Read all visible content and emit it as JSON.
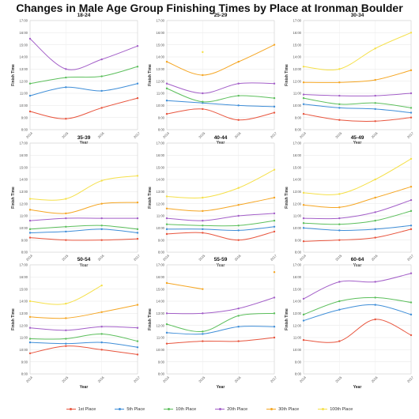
{
  "title": "Changes in Male Age Group Finishing Times by Place at Ironman Boulder",
  "legend": [
    {
      "name": "1st Place",
      "color": "#e8553e"
    },
    {
      "name": "5th Place",
      "color": "#3f8ed8"
    },
    {
      "name": "10th Place",
      "color": "#5cbf5c"
    },
    {
      "name": "20th Place",
      "color": "#a35fc8"
    },
    {
      "name": "30th Place",
      "color": "#f5a623"
    },
    {
      "name": "100th Place",
      "color": "#f5e04a"
    }
  ],
  "chart_data": [
    {
      "type": "line",
      "title": "18-24",
      "xlabel": "Year",
      "ylabel": "Finish Time",
      "x": [
        2014,
        2015,
        2016,
        2017
      ],
      "x_tick_labels": [
        "2014",
        "2015",
        "2016",
        "2017"
      ],
      "ylim": [
        8,
        17
      ],
      "y_tick_labels": [
        "8:00",
        "9:00",
        "10:00",
        "11:00",
        "12:00",
        "13:00",
        "14:00",
        "15:00",
        "16:00",
        "17:00"
      ],
      "series": [
        {
          "name": "1st Place",
          "values": [
            9.5,
            8.9,
            9.8,
            10.6
          ]
        },
        {
          "name": "5th Place",
          "values": [
            10.8,
            11.5,
            11.2,
            11.8
          ]
        },
        {
          "name": "10th Place",
          "values": [
            11.8,
            12.3,
            12.4,
            13.2
          ]
        },
        {
          "name": "20th Place",
          "values": [
            15.5,
            13.0,
            13.8,
            14.9
          ]
        }
      ]
    },
    {
      "type": "line",
      "title": "25-29",
      "xlabel": "Year",
      "ylabel": "Finish Time",
      "x": [
        2014,
        2015,
        2016,
        2017
      ],
      "x_tick_labels": [
        "2014",
        "2015",
        "2016",
        "2017"
      ],
      "ylim": [
        8,
        17
      ],
      "y_tick_labels": [
        "8:00",
        "9:00",
        "10:00",
        "11:00",
        "12:00",
        "13:00",
        "14:00",
        "15:00",
        "16:00",
        "17:00"
      ],
      "series": [
        {
          "name": "1st Place",
          "values": [
            9.3,
            9.7,
            8.8,
            9.4
          ]
        },
        {
          "name": "5th Place",
          "values": [
            10.4,
            10.2,
            10.0,
            9.9
          ]
        },
        {
          "name": "10th Place",
          "values": [
            11.4,
            10.3,
            10.8,
            10.6
          ]
        },
        {
          "name": "20th Place",
          "values": [
            11.8,
            11.0,
            11.8,
            11.8
          ]
        },
        {
          "name": "30th Place",
          "values": [
            13.6,
            12.5,
            13.6,
            15.0
          ]
        },
        {
          "name": "100th Place",
          "values": [
            null,
            14.4,
            null,
            null
          ]
        }
      ]
    },
    {
      "type": "line",
      "title": "30-34",
      "xlabel": "Year",
      "ylabel": "Finish Time",
      "x": [
        2014,
        2015,
        2016,
        2017
      ],
      "x_tick_labels": [
        "2014",
        "2015",
        "2016",
        "2017"
      ],
      "ylim": [
        8,
        17
      ],
      "y_tick_labels": [
        "8:00",
        "9:00",
        "10:00",
        "11:00",
        "12:00",
        "13:00",
        "14:00",
        "15:00",
        "16:00",
        "17:00"
      ],
      "series": [
        {
          "name": "1st Place",
          "values": [
            9.3,
            8.8,
            8.7,
            9.0
          ]
        },
        {
          "name": "5th Place",
          "values": [
            10.1,
            9.8,
            9.7,
            9.4
          ]
        },
        {
          "name": "10th Place",
          "values": [
            10.6,
            10.1,
            10.2,
            9.8
          ]
        },
        {
          "name": "20th Place",
          "values": [
            10.9,
            10.8,
            10.8,
            11.0
          ]
        },
        {
          "name": "30th Place",
          "values": [
            11.9,
            11.9,
            12.1,
            12.9
          ]
        },
        {
          "name": "100th Place",
          "values": [
            13.2,
            13.0,
            14.7,
            16.0
          ]
        }
      ]
    },
    {
      "type": "line",
      "title": "35-39",
      "xlabel": "Year",
      "ylabel": "Finish Time",
      "x": [
        2014,
        2015,
        2016,
        2017
      ],
      "x_tick_labels": [
        "2014",
        "2015",
        "2016",
        "2017"
      ],
      "ylim": [
        8,
        17
      ],
      "y_tick_labels": [
        "8:00",
        "9:00",
        "10:00",
        "11:00",
        "12:00",
        "13:00",
        "14:00",
        "15:00",
        "16:00",
        "17:00"
      ],
      "series": [
        {
          "name": "1st Place",
          "values": [
            9.2,
            9.0,
            9.0,
            9.1
          ]
        },
        {
          "name": "5th Place",
          "values": [
            9.6,
            9.7,
            9.9,
            9.6
          ]
        },
        {
          "name": "10th Place",
          "values": [
            9.9,
            10.1,
            10.2,
            9.9
          ]
        },
        {
          "name": "20th Place",
          "values": [
            10.6,
            10.8,
            10.8,
            10.8
          ]
        },
        {
          "name": "30th Place",
          "values": [
            11.5,
            11.2,
            12.0,
            12.1
          ]
        },
        {
          "name": "100th Place",
          "values": [
            12.4,
            12.4,
            13.9,
            14.3
          ]
        }
      ]
    },
    {
      "type": "line",
      "title": "40-44",
      "xlabel": "Year",
      "ylabel": "Finish Time",
      "x": [
        2014,
        2015,
        2016,
        2017
      ],
      "x_tick_labels": [
        "2014",
        "2015",
        "2016",
        "2017"
      ],
      "ylim": [
        8,
        17
      ],
      "y_tick_labels": [
        "8:00",
        "9:00",
        "10:00",
        "11:00",
        "12:00",
        "13:00",
        "14:00",
        "15:00",
        "16:00",
        "17:00"
      ],
      "series": [
        {
          "name": "1st Place",
          "values": [
            9.5,
            9.6,
            9.0,
            9.7
          ]
        },
        {
          "name": "5th Place",
          "values": [
            9.9,
            9.9,
            9.8,
            10.1
          ]
        },
        {
          "name": "10th Place",
          "values": [
            10.3,
            10.2,
            10.2,
            10.6
          ]
        },
        {
          "name": "20th Place",
          "values": [
            10.8,
            10.6,
            11.0,
            11.2
          ]
        },
        {
          "name": "30th Place",
          "values": [
            11.6,
            11.4,
            11.9,
            12.5
          ]
        },
        {
          "name": "100th Place",
          "values": [
            12.6,
            12.5,
            13.3,
            14.8
          ]
        }
      ]
    },
    {
      "type": "line",
      "title": "45-49",
      "xlabel": "Year",
      "ylabel": "Finish Time",
      "x": [
        2014,
        2015,
        2016,
        2017
      ],
      "x_tick_labels": [
        "2014",
        "2015",
        "2016",
        "2017"
      ],
      "ylim": [
        8,
        17
      ],
      "y_tick_labels": [
        "8:00",
        "9:00",
        "10:00",
        "11:00",
        "12:00",
        "13:00",
        "14:00",
        "15:00",
        "16:00",
        "17:00"
      ],
      "series": [
        {
          "name": "1st Place",
          "values": [
            8.9,
            9.0,
            9.2,
            9.9
          ]
        },
        {
          "name": "5th Place",
          "values": [
            10.0,
            9.8,
            9.9,
            10.2
          ]
        },
        {
          "name": "10th Place",
          "values": [
            10.4,
            10.3,
            10.6,
            11.4
          ]
        },
        {
          "name": "20th Place",
          "values": [
            10.8,
            10.8,
            11.3,
            12.3
          ]
        },
        {
          "name": "30th Place",
          "values": [
            11.9,
            11.7,
            12.5,
            13.4
          ]
        },
        {
          "name": "100th Place",
          "values": [
            12.9,
            12.8,
            14.0,
            15.7
          ]
        }
      ]
    },
    {
      "type": "line",
      "title": "50-54",
      "xlabel": "Year",
      "ylabel": "Finish Time",
      "x": [
        2014,
        2015,
        2016,
        2017
      ],
      "x_tick_labels": [
        "2014",
        "2015",
        "2016",
        "2017"
      ],
      "ylim": [
        8,
        17
      ],
      "y_tick_labels": [
        "8:00",
        "9:00",
        "10:00",
        "11:00",
        "12:00",
        "13:00",
        "14:00",
        "15:00",
        "16:00",
        "17:00"
      ],
      "series": [
        {
          "name": "1st Place",
          "values": [
            9.7,
            10.3,
            10.0,
            9.6
          ]
        },
        {
          "name": "5th Place",
          "values": [
            10.6,
            10.5,
            10.6,
            10.2
          ]
        },
        {
          "name": "10th Place",
          "values": [
            10.9,
            10.9,
            11.3,
            10.7
          ]
        },
        {
          "name": "20th Place",
          "values": [
            11.8,
            11.6,
            11.9,
            11.8
          ]
        },
        {
          "name": "30th Place",
          "values": [
            12.7,
            12.6,
            13.1,
            13.7
          ]
        },
        {
          "name": "100th Place",
          "values": [
            14.0,
            13.8,
            15.3,
            null
          ]
        }
      ]
    },
    {
      "type": "line",
      "title": "55-59",
      "xlabel": "Year",
      "ylabel": "Finish Time",
      "x": [
        2014,
        2015,
        2016,
        2017
      ],
      "x_tick_labels": [
        "2014",
        "2015",
        "2016",
        "2017"
      ],
      "ylim": [
        8,
        17
      ],
      "y_tick_labels": [
        "8:00",
        "9:00",
        "10:00",
        "11:00",
        "12:00",
        "13:00",
        "14:00",
        "15:00",
        "16:00",
        "17:00"
      ],
      "series": [
        {
          "name": "1st Place",
          "values": [
            10.5,
            10.7,
            10.7,
            11.0
          ]
        },
        {
          "name": "5th Place",
          "values": [
            11.4,
            11.3,
            11.9,
            11.9
          ]
        },
        {
          "name": "10th Place",
          "values": [
            12.1,
            11.5,
            12.8,
            13.0
          ]
        },
        {
          "name": "20th Place",
          "values": [
            13.0,
            13.0,
            13.4,
            14.3
          ]
        },
        {
          "name": "30th Place",
          "values": [
            15.5,
            15.0,
            null,
            16.4
          ]
        }
      ]
    },
    {
      "type": "line",
      "title": "60-64",
      "xlabel": "Year",
      "ylabel": "Finish Time",
      "x": [
        2014,
        2015,
        2016,
        2017
      ],
      "x_tick_labels": [
        "2014",
        "2015",
        "2016",
        "2017"
      ],
      "ylim": [
        8,
        17
      ],
      "y_tick_labels": [
        "8:00",
        "9:00",
        "10:00",
        "11:00",
        "12:00",
        "13:00",
        "14:00",
        "15:00",
        "16:00",
        "17:00"
      ],
      "series": [
        {
          "name": "1st Place",
          "values": [
            10.8,
            10.7,
            12.5,
            11.2
          ]
        },
        {
          "name": "5th Place",
          "values": [
            12.4,
            13.3,
            13.7,
            12.9
          ]
        },
        {
          "name": "10th Place",
          "values": [
            12.9,
            14.0,
            14.3,
            13.9
          ]
        },
        {
          "name": "20th Place",
          "values": [
            14.2,
            15.6,
            15.6,
            16.3
          ]
        }
      ]
    }
  ]
}
